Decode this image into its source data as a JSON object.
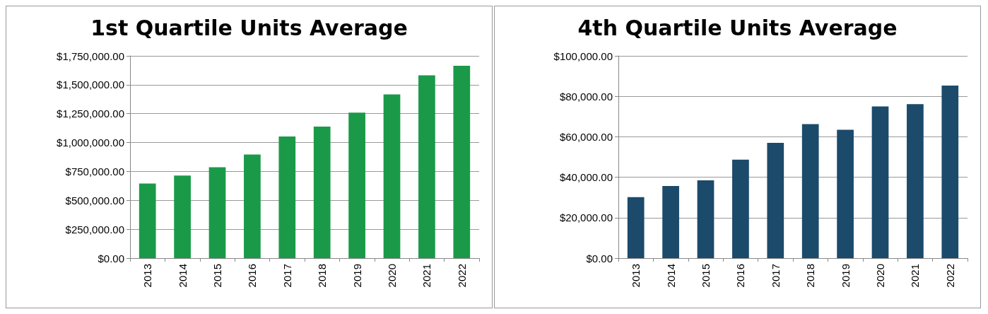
{
  "chart_data": [
    {
      "type": "bar",
      "title": "1st Quartile Units Average",
      "categories": [
        "2013",
        "2014",
        "2015",
        "2016",
        "2017",
        "2018",
        "2019",
        "2020",
        "2021",
        "2022"
      ],
      "values": [
        646000,
        714000,
        787000,
        896000,
        1053000,
        1138000,
        1259000,
        1416000,
        1581000,
        1665000
      ],
      "color": "#1a9a48",
      "ylim": [
        0,
        1750000
      ],
      "yticks": [
        {
          "value": 0,
          "label": "$0.00"
        },
        {
          "value": 250000,
          "label": "$250,000.00"
        },
        {
          "value": 500000,
          "label": "$500,000.00"
        },
        {
          "value": 750000,
          "label": "$750,000.00"
        },
        {
          "value": 1000000,
          "label": "$1,000,000.00"
        },
        {
          "value": 1250000,
          "label": "$1,250,000.00"
        },
        {
          "value": 1500000,
          "label": "$1,500,000.00"
        },
        {
          "value": 1750000,
          "label": "$1,750,000.00"
        }
      ],
      "grid": "y"
    },
    {
      "type": "bar",
      "title": "4th Quartile Units Average",
      "categories": [
        "2013",
        "2014",
        "2015",
        "2016",
        "2017",
        "2018",
        "2019",
        "2020",
        "2021",
        "2022"
      ],
      "values": [
        30200,
        35700,
        38500,
        48700,
        57000,
        66300,
        63500,
        75000,
        76100,
        85300
      ],
      "color": "#1b4a6b",
      "ylim": [
        0,
        100000
      ],
      "yticks": [
        {
          "value": 0,
          "label": "$0.00"
        },
        {
          "value": 20000,
          "label": "$20,000.00"
        },
        {
          "value": 40000,
          "label": "$40,000.00"
        },
        {
          "value": 60000,
          "label": "$60,000.00"
        },
        {
          "value": 80000,
          "label": "$80,000.00"
        },
        {
          "value": 100000,
          "label": "$100,000.00"
        }
      ],
      "grid": "y"
    }
  ]
}
